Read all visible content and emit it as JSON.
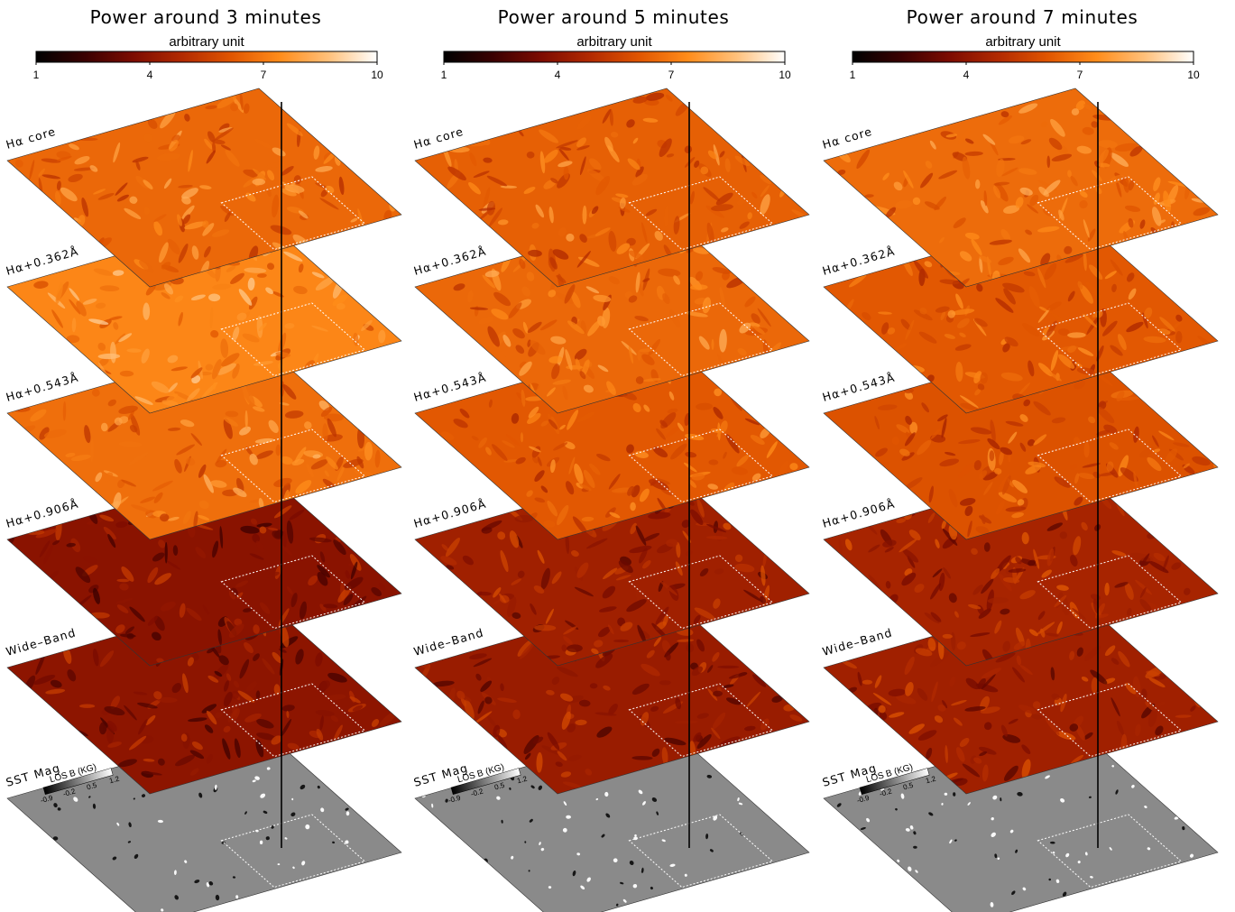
{
  "columns": [
    {
      "title": "Power around 3 minutes",
      "colorbar_label": "arbitrary unit",
      "ticks": [
        "1",
        "4",
        "7",
        "10"
      ]
    },
    {
      "title": "Power around 5 minutes",
      "colorbar_label": "arbitrary unit",
      "ticks": [
        "1",
        "4",
        "7",
        "10"
      ]
    },
    {
      "title": "Power around 7 minutes",
      "colorbar_label": "arbitrary unit",
      "ticks": [
        "1",
        "4",
        "7",
        "10"
      ]
    }
  ],
  "layers": [
    {
      "label": "Hα  core",
      "kind": "power",
      "levels": [
        0.62,
        0.6,
        0.63
      ]
    },
    {
      "label": "Hα+0.362Å",
      "kind": "power",
      "levels": [
        0.7,
        0.62,
        0.58
      ]
    },
    {
      "label": "Hα+0.543Å",
      "kind": "power",
      "levels": [
        0.64,
        0.58,
        0.56
      ]
    },
    {
      "label": "Hα+0.906Å",
      "kind": "power",
      "levels": [
        0.32,
        0.38,
        0.4
      ]
    },
    {
      "label": "Wide–Band",
      "kind": "power",
      "levels": [
        0.33,
        0.36,
        0.38
      ]
    },
    {
      "label": "SST  Mag",
      "kind": "mag",
      "levels": [
        0.5,
        0.5,
        0.5
      ]
    }
  ],
  "mag_colorbar": {
    "label": "LOS B (KG)",
    "ticks": [
      "-0.9",
      "-0.2",
      "0.5",
      "1.2"
    ]
  },
  "colormap_stops": [
    "#000000",
    "#3a0000",
    "#7d0c00",
    "#b22a00",
    "#e05500",
    "#ff8c1a",
    "#ffc07a",
    "#ffffff"
  ],
  "mag_colors": {
    "background": "#8a8a8a",
    "positive": "#ffffff",
    "negative": "#101010"
  }
}
